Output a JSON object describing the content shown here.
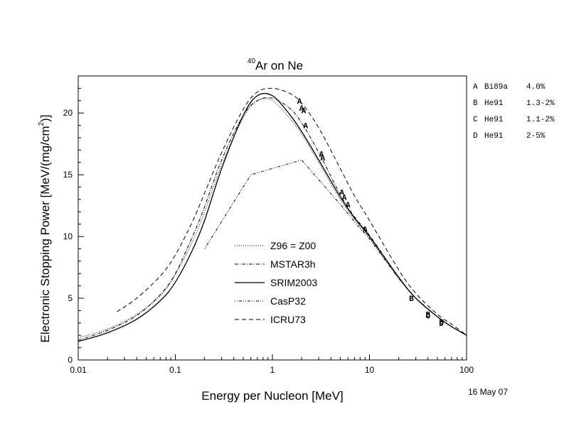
{
  "chart_data": {
    "type": "line",
    "title": "Ar on Ne",
    "title_superscript": "40",
    "xlabel": "Energy per Nucleon [MeV]",
    "ylabel_prefix": "Electronic Stopping Power [MeV/(mg/cm",
    "ylabel_superscript": "2",
    "ylabel_suffix": ")]",
    "x_scale": "log",
    "xlim": [
      0.01,
      100
    ],
    "ylim": [
      0,
      23
    ],
    "x_ticks": [
      {
        "value": 0.01,
        "label": "0.01"
      },
      {
        "value": 0.1,
        "label": "0.1"
      },
      {
        "value": 1,
        "label": "1"
      },
      {
        "value": 10,
        "label": "10"
      },
      {
        "value": 100,
        "label": "100"
      }
    ],
    "y_ticks": [
      {
        "value": 0,
        "label": "0"
      },
      {
        "value": 5,
        "label": "5"
      },
      {
        "value": 10,
        "label": "10"
      },
      {
        "value": 15,
        "label": "15"
      },
      {
        "value": 20,
        "label": "20"
      }
    ],
    "grid": false,
    "legend_position": "center",
    "date": "16 May 07",
    "series": [
      {
        "name": "Z96 = Z00",
        "style": "dotted",
        "x": [
          0.01,
          0.02,
          0.04,
          0.07,
          0.1,
          0.15,
          0.2,
          0.3,
          0.5,
          0.7,
          1,
          1.5,
          2,
          3,
          5,
          7,
          10,
          20,
          30,
          50,
          70,
          100
        ],
        "y": [
          1.8,
          2.5,
          3.7,
          5.2,
          6.9,
          9.6,
          12.0,
          15.8,
          19.6,
          21.0,
          21.0,
          19.6,
          18.3,
          16.0,
          13.0,
          11.4,
          9.9,
          6.6,
          5.0,
          3.5,
          2.7,
          2.0
        ]
      },
      {
        "name": "MSTAR3h",
        "style": "dashdot",
        "x": [
          0.01,
          0.02,
          0.04,
          0.07,
          0.1,
          0.15,
          0.2,
          0.3,
          0.5,
          0.7,
          1,
          1.5,
          2,
          3,
          5,
          7,
          10,
          20,
          30,
          50,
          70,
          100
        ],
        "y": [
          1.6,
          2.4,
          3.6,
          5.3,
          7.0,
          10.0,
          12.4,
          16.2,
          19.8,
          21.0,
          21.2,
          20.4,
          19.2,
          16.8,
          13.4,
          11.6,
          10.1,
          6.7,
          5.0,
          3.5,
          2.7,
          2.0
        ]
      },
      {
        "name": "SRIM2003",
        "style": "solid",
        "x": [
          0.01,
          0.02,
          0.04,
          0.07,
          0.1,
          0.15,
          0.2,
          0.3,
          0.5,
          0.7,
          1,
          1.5,
          2,
          3,
          5,
          7,
          10,
          20,
          30,
          50,
          70,
          100
        ],
        "y": [
          1.5,
          2.2,
          3.3,
          4.8,
          6.3,
          8.9,
          11.3,
          15.5,
          19.8,
          21.4,
          21.4,
          19.9,
          18.5,
          16.2,
          13.2,
          11.5,
          10.0,
          6.7,
          5.0,
          3.5,
          2.7,
          2.0
        ]
      },
      {
        "name": "CasP32",
        "style": "dot-dot-dash",
        "x": [
          0.2,
          0.6,
          2,
          3,
          5,
          7,
          10,
          20,
          30,
          50,
          70,
          100
        ],
        "y": [
          9.0,
          15.0,
          16.2,
          14.6,
          12.6,
          11.2,
          9.8,
          6.6,
          5.0,
          3.5,
          2.7,
          2.0
        ]
      },
      {
        "name": "ICRU73",
        "style": "dashed",
        "x": [
          0.025,
          0.04,
          0.07,
          0.1,
          0.15,
          0.2,
          0.3,
          0.5,
          0.7,
          1,
          1.5,
          2,
          3,
          5,
          7,
          10,
          20,
          30,
          50,
          70,
          100
        ],
        "y": [
          3.9,
          5.0,
          6.8,
          8.5,
          11.2,
          13.5,
          16.8,
          20.3,
          21.7,
          22.0,
          21.6,
          20.8,
          18.8,
          15.5,
          13.3,
          11.3,
          7.3,
          5.4,
          3.7,
          2.9,
          2.0
        ]
      }
    ],
    "experimental_data": [
      {
        "marker": "A",
        "x": [
          1.9,
          2.0,
          2.1,
          2.2,
          3.2,
          3.3,
          5.2,
          5.5,
          6.0,
          9.0
        ],
        "y": [
          21.0,
          20.4,
          20.2,
          19.0,
          16.7,
          16.4,
          13.6,
          13.2,
          12.6,
          10.6
        ]
      },
      {
        "marker": "B",
        "x": [
          27,
          40,
          55
        ],
        "y": [
          5.0,
          3.7,
          3.1
        ]
      },
      {
        "marker": "C",
        "x": [
          40
        ],
        "y": [
          3.6
        ]
      },
      {
        "marker": "D",
        "x": [
          55
        ],
        "y": [
          3.0
        ]
      }
    ],
    "data_legend": [
      {
        "letter": "A",
        "source": "Bi89a",
        "uncertainty": "4.0%"
      },
      {
        "letter": "B",
        "source": "He91",
        "uncertainty": "1.3-2%"
      },
      {
        "letter": "C",
        "source": "He91",
        "uncertainty": "1.1-2%"
      },
      {
        "letter": "D",
        "source": "He91",
        "uncertainty": "2-5%"
      }
    ]
  }
}
